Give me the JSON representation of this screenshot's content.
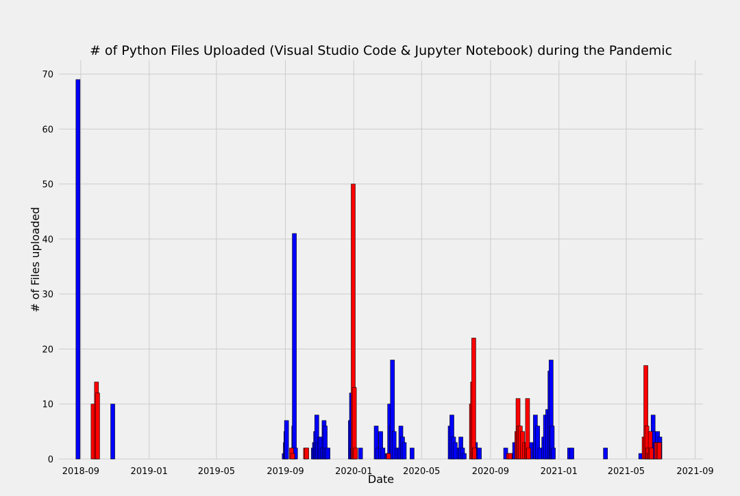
{
  "chart_data": {
    "type": "bar",
    "title": "# of Python Files Uploaded (Visual Studio Code & Jupyter Notebook) during the Pandemic",
    "xlabel": "Date",
    "ylabel": "# of Files uploaded",
    "x_axis": "date",
    "xlim": [
      "2018-07-24",
      "2021-09-15"
    ],
    "ylim": [
      0,
      72.5
    ],
    "xticks": [
      "2018-09",
      "2019-01",
      "2019-05",
      "2019-09",
      "2020-01",
      "2020-05",
      "2020-09",
      "2021-01",
      "2021-05",
      "2021-09"
    ],
    "yticks": [
      0,
      10,
      20,
      30,
      40,
      50,
      60,
      70
    ],
    "grid": true,
    "legend": "none",
    "colors": {
      "blue": "#0000ff",
      "red": "#ff0000",
      "background": "#f0f0f0",
      "grid": "#cbcbcb",
      "edge": "#000000"
    },
    "series": [
      {
        "color": "blue",
        "x": [
          "2018-08-27",
          "2018-10-28",
          "2019-08-30",
          "2019-09-01",
          "2019-09-02",
          "2019-09-03",
          "2019-09-16",
          "2019-09-17",
          "2019-09-19",
          "2019-10-21",
          "2019-10-23",
          "2019-10-25",
          "2019-10-27",
          "2019-10-29",
          "2019-11-01",
          "2019-11-03",
          "2019-11-06",
          "2019-11-09",
          "2019-11-11",
          "2019-11-13",
          "2019-11-16",
          "2019-12-26",
          "2019-12-28",
          "2019-12-30",
          "2020-01-01",
          "2020-01-03",
          "2020-01-13",
          "2020-02-10",
          "2020-02-13",
          "2020-02-18",
          "2020-02-22",
          "2020-03-01",
          "2020-03-05",
          "2020-03-08",
          "2020-03-10",
          "2020-03-13",
          "2020-03-18",
          "2020-03-22",
          "2020-03-25",
          "2020-03-28",
          "2020-03-31",
          "2020-04-14",
          "2020-06-21",
          "2020-06-24",
          "2020-06-27",
          "2020-06-30",
          "2020-07-07",
          "2020-07-10",
          "2020-07-13",
          "2020-07-16",
          "2020-08-05",
          "2020-08-08",
          "2020-08-12",
          "2020-09-28",
          "2020-10-06",
          "2020-10-10",
          "2020-10-14",
          "2020-11-12",
          "2020-11-20",
          "2020-11-24",
          "2020-11-28",
          "2020-12-05",
          "2020-12-08",
          "2020-12-12",
          "2020-12-16",
          "2020-12-18",
          "2020-12-20",
          "2020-12-22",
          "2021-01-20",
          "2021-01-24",
          "2021-03-25",
          "2021-05-27",
          "2021-06-12",
          "2021-06-16",
          "2021-06-18",
          "2021-06-20",
          "2021-06-22",
          "2021-06-26",
          "2021-06-30"
        ],
        "values": [
          69,
          10,
          1,
          3,
          5,
          7,
          6,
          41,
          2,
          2,
          3,
          5,
          8,
          3,
          4,
          4,
          2,
          7,
          6,
          2,
          2,
          7,
          12,
          2,
          1,
          2,
          2,
          6,
          2,
          5,
          2,
          1,
          10,
          6,
          18,
          5,
          2,
          2,
          6,
          4,
          3,
          2,
          6,
          8,
          4,
          3,
          2,
          4,
          2,
          1,
          3,
          2,
          2,
          2,
          1,
          1,
          3,
          3,
          8,
          6,
          2,
          4,
          8,
          9,
          16,
          18,
          6,
          2,
          2,
          2,
          2,
          1,
          2,
          5,
          8,
          5,
          3,
          5,
          4
        ]
      },
      {
        "color": "red",
        "x": [
          "2018-09-23",
          "2018-09-29",
          "2018-10-01",
          "2019-09-12",
          "2019-09-14",
          "2019-10-07",
          "2019-10-09",
          "2019-12-31",
          "2020-01-02",
          "2020-01-04",
          "2020-03-03",
          "2020-07-29",
          "2020-07-31",
          "2020-08-02",
          "2020-08-03",
          "2020-10-03",
          "2020-10-06",
          "2020-10-18",
          "2020-10-20",
          "2020-10-22",
          "2020-10-24",
          "2020-10-28",
          "2020-11-01",
          "2020-11-04",
          "2020-11-06",
          "2020-11-08",
          "2021-06-02",
          "2021-06-05",
          "2021-06-07",
          "2021-06-09",
          "2021-06-11",
          "2021-06-13",
          "2021-06-15",
          "2021-06-24",
          "2021-06-27",
          "2021-06-29"
        ],
        "values": [
          10,
          14,
          12,
          2,
          1,
          2,
          2,
          50,
          13,
          2,
          1,
          10,
          14,
          22,
          2,
          1,
          1,
          5,
          11,
          6,
          6,
          5,
          3,
          3,
          11,
          2,
          4,
          17,
          6,
          2,
          1,
          5,
          2,
          3,
          3,
          3
        ]
      }
    ]
  }
}
